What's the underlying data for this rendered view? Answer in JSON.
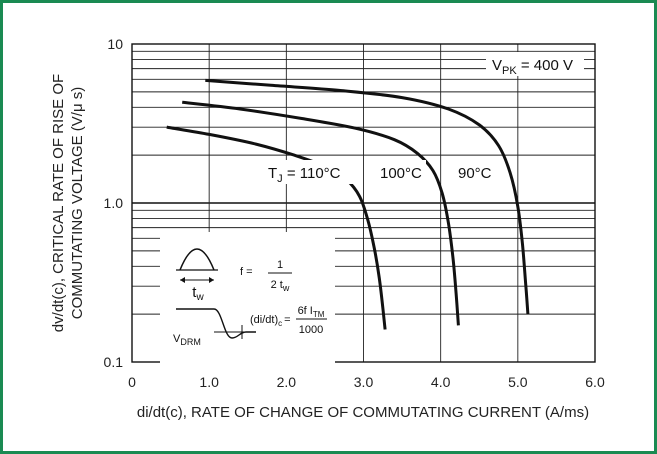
{
  "chart_data": {
    "type": "line",
    "xlabel": "di/dt(c), RATE OF CHANGE OF COMMUTATING CURRENT (A/ms)",
    "ylabel_line1": "dv/dt(c), CRITICAL RATE OF RISE OF",
    "ylabel_line2": "COMMUTATING VOLTAGE (V/μ s)",
    "xlim": [
      0,
      6
    ],
    "ylim": [
      0.1,
      10
    ],
    "yscale": "log",
    "grid": true,
    "x_ticks": [
      {
        "value": 0,
        "label": "0"
      },
      {
        "value": 1,
        "label": "1.0"
      },
      {
        "value": 2,
        "label": "2.0"
      },
      {
        "value": 3,
        "label": "3.0"
      },
      {
        "value": 4,
        "label": "4.0"
      },
      {
        "value": 5,
        "label": "5.0"
      },
      {
        "value": 6,
        "label": "6.0"
      }
    ],
    "y_ticks": [
      {
        "value": 10,
        "label": "10"
      },
      {
        "value": 1,
        "label": "1.0"
      },
      {
        "value": 0.1,
        "label": "0.1"
      }
    ],
    "series": [
      {
        "label": "T_J = 110°C",
        "x": [
          0.45,
          1.0,
          1.6,
          2.1,
          2.5,
          2.78,
          2.95,
          3.05,
          3.13,
          3.2,
          3.25,
          3.28
        ],
        "y": [
          3.0,
          2.7,
          2.35,
          2.0,
          1.7,
          1.4,
          1.1,
          0.8,
          0.55,
          0.35,
          0.22,
          0.16
        ]
      },
      {
        "label": "100°C",
        "x": [
          0.65,
          1.4,
          2.2,
          2.9,
          3.4,
          3.7,
          3.9,
          4.02,
          4.1,
          4.16,
          4.2,
          4.23
        ],
        "y": [
          4.3,
          3.9,
          3.4,
          2.95,
          2.5,
          2.05,
          1.6,
          1.15,
          0.75,
          0.45,
          0.27,
          0.17
        ]
      },
      {
        "label": "90°C",
        "x": [
          0.95,
          1.8,
          2.7,
          3.5,
          4.1,
          4.5,
          4.75,
          4.9,
          5.0,
          5.06,
          5.1,
          5.13
        ],
        "y": [
          5.9,
          5.5,
          5.1,
          4.6,
          3.9,
          3.1,
          2.3,
          1.55,
          0.95,
          0.55,
          0.32,
          0.2
        ]
      }
    ],
    "annotations": {
      "vpk": "V",
      "vpk_sub": "PK",
      "vpk_tail": " = 400 V",
      "tj_110": "T",
      "tj_110_sub": "J",
      "tj_110_tail": " = 110°C",
      "t100": "100°C",
      "t90": "90°C"
    },
    "inset": {
      "tw_main": "t",
      "tw_sub": "w",
      "freq_lhs": "f =",
      "freq_num": "1",
      "freq_den_main": "2 t",
      "freq_den_sub": "w",
      "vdrm_main": "V",
      "vdrm_sub": "DRM",
      "didt_lhs_main": "(di/dt)",
      "didt_lhs_sub": "c",
      "didt_eq": "=",
      "didt_num_main": "6f I",
      "didt_num_sub": "TM",
      "didt_den": "1000"
    }
  }
}
